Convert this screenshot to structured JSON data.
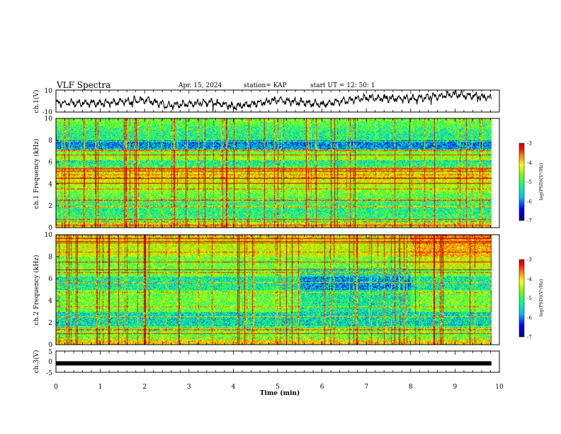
{
  "header": {
    "title": "VLF Spectra",
    "date": "Apr. 15, 2024",
    "station": "station= KAP",
    "start": "start  UT  =   12: 50: 1"
  },
  "chart_data": [
    {
      "type": "line",
      "panel": "ch1-waveform",
      "ylabel": "ch.1(V)",
      "ylim": [
        -10,
        10
      ],
      "yticks": [
        "10",
        "-10"
      ],
      "xlim": [
        0,
        10
      ],
      "note_trend": [
        {
          "t": 0.0,
          "v": -2
        },
        {
          "t": 1.0,
          "v": -2
        },
        {
          "t": 2.0,
          "v": 1
        },
        {
          "t": 2.5,
          "v": -4
        },
        {
          "t": 3.5,
          "v": -1
        },
        {
          "t": 4.0,
          "v": -5
        },
        {
          "t": 5.0,
          "v": 1
        },
        {
          "t": 6.0,
          "v": -3
        },
        {
          "t": 7.0,
          "v": 3
        },
        {
          "t": 8.0,
          "v": 2
        },
        {
          "t": 9.0,
          "v": 6
        },
        {
          "t": 9.8,
          "v": 3
        }
      ]
    },
    {
      "type": "heatmap",
      "panel": "ch1-spectrogram",
      "ylabel": "ch.1 Frequency (kHz)",
      "ylim": [
        0,
        10
      ],
      "yticks": [
        "0",
        "2",
        "4",
        "6",
        "8",
        "10"
      ],
      "xlim": [
        0,
        10
      ],
      "colorbar": {
        "label": "log(PSD)(V²/Hz)",
        "range": [
          -7,
          -3
        ],
        "ticks": [
          "-3",
          "-4",
          "-5",
          "-6",
          "-7"
        ]
      }
    },
    {
      "type": "heatmap",
      "panel": "ch2-spectrogram",
      "ylabel": "ch.2 Frequency (kHz)",
      "ylim": [
        0,
        10
      ],
      "yticks": [
        "0",
        "2",
        "4",
        "6",
        "8",
        "10"
      ],
      "xlim": [
        0,
        10
      ],
      "colorbar": {
        "label": "log(PSD)(V²/Hz)",
        "range": [
          -7,
          -3
        ],
        "ticks": [
          "-3",
          "-4",
          "-5",
          "-6",
          "-7"
        ]
      }
    },
    {
      "type": "line",
      "panel": "ch3-waveform",
      "ylabel": "ch.3(V)",
      "ylim": [
        -5,
        5
      ],
      "yticks": [
        "5",
        "0",
        "-5"
      ],
      "xlim": [
        0,
        10
      ],
      "level": -0.8
    }
  ],
  "xaxis": {
    "label": "Time  (min)",
    "ticks": [
      "0",
      "1",
      "2",
      "3",
      "4",
      "5",
      "6",
      "7",
      "8",
      "9",
      "10"
    ],
    "range": [
      0,
      10
    ],
    "data_end": 9.82
  },
  "colors": {
    "colormap": [
      "#00007f",
      "#0000ff",
      "#00bfff",
      "#00ff7f",
      "#7fff00",
      "#ffff00",
      "#ff7f00",
      "#ff0000",
      "#bf0000"
    ],
    "line": "#000000"
  }
}
